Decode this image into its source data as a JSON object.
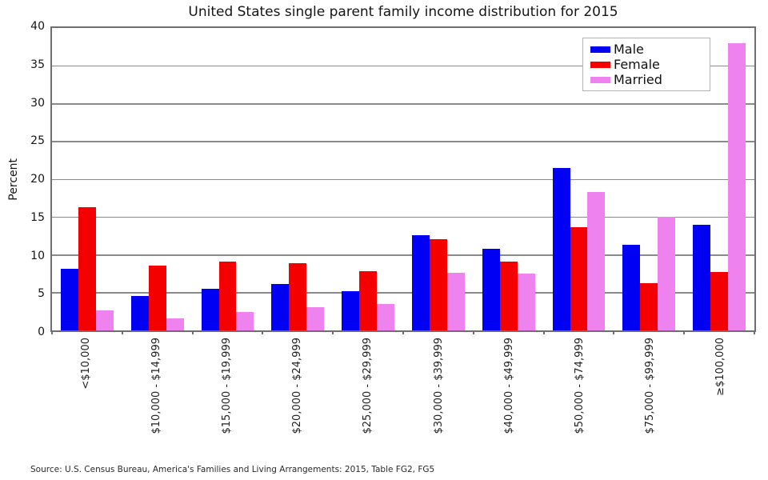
{
  "title": "United States single parent family income distribution for 2015",
  "source_note": "Source: U.S. Census Bureau, America's Families and Living Arrangements: 2015, Table FG2, FG5",
  "axis_color": "#6e6e6e",
  "grid_color": "#8a8a8a",
  "chart_data": {
    "type": "bar",
    "title": "United States single parent family income distribution for 2015",
    "xlabel": "",
    "ylabel": "Percent",
    "ylim": [
      0,
      40
    ],
    "yticks": [
      0,
      5,
      10,
      15,
      20,
      25,
      30,
      35,
      40
    ],
    "grid": true,
    "legend_position": "top-right",
    "categories": [
      "<$10,000",
      "$10,000 - $14,999",
      "$15,000 - $19,999",
      "$20,000 - $24,999",
      "$25,000 - $29,999",
      "$30,000 - $39,999",
      "$40,000 - $49,999",
      "$50,000 - $74,999",
      "$75,000 - $99,999",
      "≥$100,000"
    ],
    "series": [
      {
        "name": "Male",
        "color": "#0000f2",
        "values": [
          8.1,
          4.6,
          5.5,
          6.1,
          5.2,
          12.6,
          10.8,
          21.5,
          11.3,
          14.0
        ]
      },
      {
        "name": "Female",
        "color": "#f50000",
        "values": [
          16.3,
          8.6,
          9.1,
          8.9,
          7.8,
          12.1,
          9.1,
          13.7,
          6.2,
          7.7
        ]
      },
      {
        "name": "Married",
        "color": "#ee82ee",
        "values": [
          2.6,
          1.6,
          2.4,
          3.1,
          3.5,
          7.6,
          7.5,
          18.3,
          15.0,
          38.0
        ]
      }
    ]
  }
}
